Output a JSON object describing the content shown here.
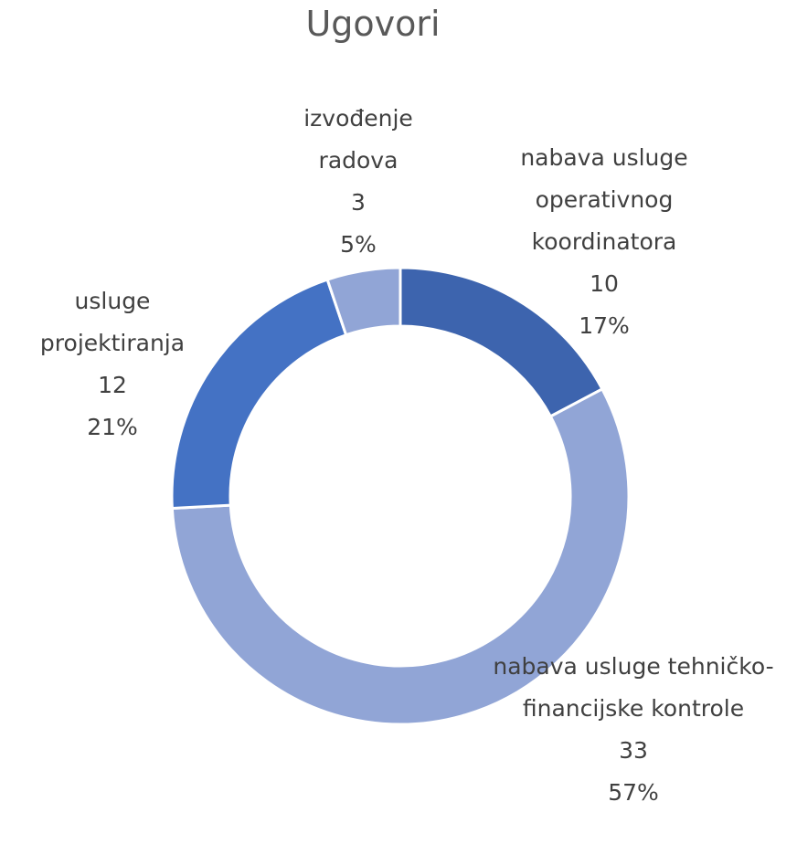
{
  "chart_data": {
    "type": "donut",
    "title": "Ugovori",
    "categories": [
      "nabava usluge operativnog koordinatora",
      "nabava usluge tehničko-financijske kontrole",
      "usluge projektiranja",
      "izvođenje radova"
    ],
    "values": [
      10,
      33,
      12,
      3
    ],
    "percents": [
      17,
      57,
      21,
      5
    ],
    "percent_labels": [
      "17%",
      "57%",
      "21%",
      "5%"
    ],
    "colors": [
      "#3d64ae",
      "#91a5d6",
      "#4472c4",
      "#91a5d6"
    ]
  }
}
